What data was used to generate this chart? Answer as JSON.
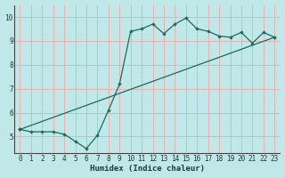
{
  "xlabel": "Humidex (Indice chaleur)",
  "bg_color": "#c0e8e8",
  "grid_color": "#e8b0b0",
  "line_color": "#1a6b5a",
  "xlim": [
    -0.5,
    23.5
  ],
  "ylim": [
    4.3,
    10.5
  ],
  "xticks": [
    0,
    1,
    2,
    3,
    4,
    5,
    6,
    7,
    8,
    9,
    10,
    11,
    12,
    13,
    14,
    15,
    16,
    17,
    18,
    19,
    20,
    21,
    22,
    23
  ],
  "yticks": [
    5,
    6,
    7,
    8,
    9,
    10
  ],
  "line1_x": [
    0,
    1,
    2,
    3,
    4,
    5,
    6,
    7,
    8,
    9,
    10,
    11,
    12,
    13,
    14,
    15,
    16,
    17,
    18,
    19,
    20,
    21,
    22,
    23
  ],
  "line1_y": [
    5.3,
    5.2,
    5.2,
    5.2,
    5.1,
    4.8,
    4.5,
    5.05,
    6.1,
    7.2,
    9.4,
    9.5,
    9.7,
    9.3,
    9.7,
    9.95,
    9.5,
    9.4,
    9.2,
    9.15,
    9.35,
    8.9,
    9.35,
    9.15
  ],
  "line2_x": [
    0,
    23
  ],
  "line2_y": [
    5.3,
    9.15
  ]
}
